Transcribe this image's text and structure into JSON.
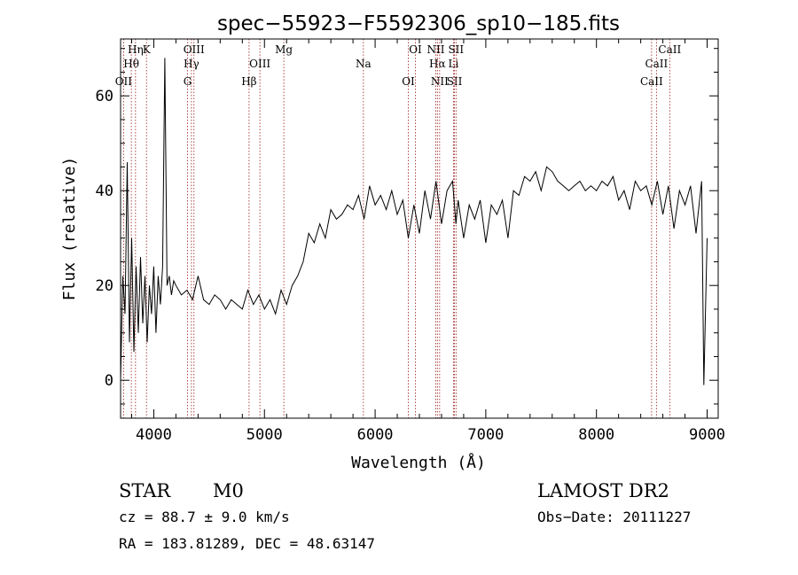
{
  "chart_data": {
    "type": "line",
    "title": "spec−55923−F5592306_sp10−185.fits",
    "xlabel": "Wavelength (Å)",
    "ylabel": "Flux (relative)",
    "xlim": [
      3700,
      9100
    ],
    "ylim": [
      -8,
      72
    ],
    "xticks": [
      4000,
      5000,
      6000,
      7000,
      8000,
      9000
    ],
    "xtick_labels": [
      "4000",
      "5000",
      "6000",
      "7000",
      "8000",
      "9000"
    ],
    "yticks": [
      0,
      20,
      40,
      60
    ],
    "ytick_labels": [
      "0",
      "20",
      "40",
      "60"
    ],
    "series": [
      {
        "x": [
          3700,
          3720,
          3740,
          3760,
          3780,
          3800,
          3820,
          3840,
          3860,
          3880,
          3900,
          3920,
          3940,
          3960,
          3980,
          4000,
          4020,
          4040,
          4060,
          4080,
          4100,
          4120,
          4140,
          4160,
          4180,
          4200,
          4250,
          4300,
          4350,
          4400,
          4450,
          4500,
          4550,
          4600,
          4650,
          4700,
          4750,
          4800,
          4850,
          4900,
          4950,
          5000,
          5050,
          5100,
          5150,
          5200,
          5250,
          5300,
          5350,
          5400,
          5450,
          5500,
          5550,
          5600,
          5650,
          5700,
          5750,
          5800,
          5850,
          5900,
          5950,
          6000,
          6050,
          6100,
          6150,
          6200,
          6250,
          6300,
          6350,
          6400,
          6450,
          6500,
          6550,
          6600,
          6650,
          6700,
          6730,
          6750,
          6800,
          6850,
          6900,
          6950,
          7000,
          7050,
          7100,
          7150,
          7200,
          7250,
          7300,
          7350,
          7400,
          7450,
          7500,
          7550,
          7600,
          7650,
          7700,
          7750,
          7800,
          7850,
          7900,
          7950,
          8000,
          8050,
          8100,
          8150,
          8200,
          8250,
          8300,
          8350,
          8400,
          8450,
          8500,
          8550,
          8600,
          8650,
          8700,
          8750,
          8800,
          8850,
          8900,
          8950,
          8970,
          9000
        ],
        "y": [
          0,
          22,
          14,
          46,
          8,
          30,
          6,
          24,
          10,
          26,
          12,
          22,
          8,
          20,
          14,
          24,
          10,
          22,
          16,
          24,
          68,
          20,
          22,
          18,
          21,
          20,
          18,
          19,
          17,
          22,
          17,
          16,
          18,
          17,
          15,
          17,
          16,
          15,
          19,
          16,
          18,
          15,
          17,
          14,
          19,
          16,
          20,
          22,
          25,
          31,
          29,
          33,
          30,
          36,
          34,
          35,
          37,
          36,
          39,
          34,
          41,
          37,
          39,
          36,
          40,
          35,
          38,
          30,
          37,
          31,
          40,
          34,
          42,
          33,
          40,
          42,
          33,
          38,
          30,
          37,
          34,
          38,
          29,
          37,
          35,
          38,
          30,
          40,
          39,
          43,
          42,
          44,
          40,
          45,
          44,
          42,
          41,
          40,
          41,
          42,
          40,
          41,
          40,
          42,
          41,
          43,
          38,
          40,
          36,
          42,
          40,
          41,
          37,
          42,
          35,
          41,
          32,
          40,
          37,
          41,
          31,
          42,
          -1,
          30
        ]
      }
    ],
    "spectral_lines": [
      {
        "name": "Hη",
        "wavelength": 3835
      },
      {
        "name": "Hθ",
        "wavelength": 3797
      },
      {
        "name": "OII",
        "wavelength": 3727
      },
      {
        "name": "K",
        "wavelength": 3934
      },
      {
        "name": "Hγ",
        "wavelength": 4340
      },
      {
        "name": "G",
        "wavelength": 4305
      },
      {
        "name": "OIII",
        "wavelength": 4363
      },
      {
        "name": "OIII",
        "wavelength": 4959
      },
      {
        "name": "Hβ",
        "wavelength": 4861
      },
      {
        "name": "Mg",
        "wavelength": 5175
      },
      {
        "name": "Na",
        "wavelength": 5894
      },
      {
        "name": "OI",
        "wavelength": 6300
      },
      {
        "name": "OI",
        "wavelength": 6364
      },
      {
        "name": "Hα",
        "wavelength": 6563
      },
      {
        "name": "SII",
        "wavelength": 6717
      },
      {
        "name": "NII",
        "wavelength": 6548
      },
      {
        "name": "Li",
        "wavelength": 6708
      },
      {
        "name": "NII",
        "wavelength": 6583
      },
      {
        "name": "SII",
        "wavelength": 6731
      },
      {
        "name": "CaII",
        "wavelength": 8542
      },
      {
        "name": "CaII",
        "wavelength": 8498
      },
      {
        "name": "CaII",
        "wavelength": 8662
      }
    ]
  },
  "info": {
    "class": "STAR",
    "subclass": "M0",
    "survey": "LAMOST DR2",
    "cz": "cz = 88.7 ± 9.0 km/s",
    "obs_date": "Obs−Date: 20111227",
    "radec": "RA = 183.81289, DEC =  48.63147"
  },
  "colors": {
    "spectrum": "#000000",
    "line_markers": "#9b1a1a",
    "axes": "#000000",
    "background": "#ffffff"
  }
}
